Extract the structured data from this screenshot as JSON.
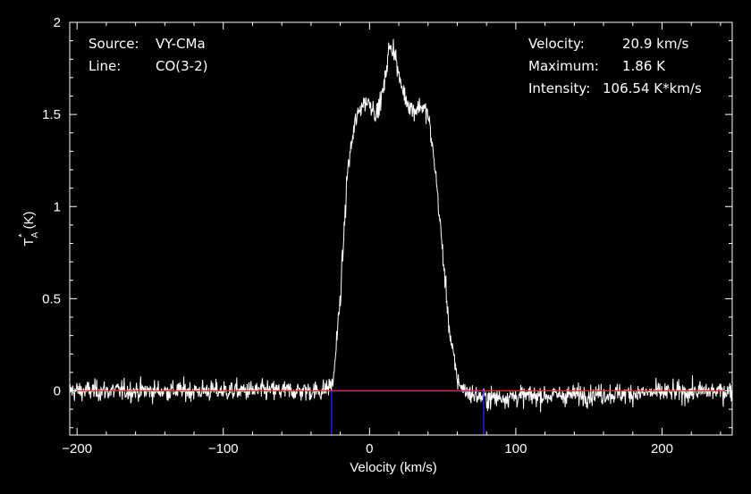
{
  "chart_data": {
    "type": "line",
    "xlabel": "Velocity (km/s)",
    "ylabel_main": "T",
    "ylabel_sub": "A",
    "ylabel_sup": "*",
    "ylabel_unit": "(K)",
    "xlim": [
      -205,
      248
    ],
    "ylim": [
      -0.24,
      2.0
    ],
    "x_ticks": [
      -200,
      -100,
      0,
      100,
      200
    ],
    "x_tick_labels": [
      "−200",
      "−100",
      "0",
      "100",
      "200"
    ],
    "y_ticks": [
      0,
      0.5,
      1,
      1.5,
      2
    ],
    "y_tick_labels": [
      "0",
      "0.5",
      "1",
      "1.5",
      "2"
    ],
    "series": [
      {
        "color": "#ffffff",
        "x": [
          -205,
          -100,
          -40,
          -32,
          -25,
          -20,
          -15,
          -10,
          -5,
          0,
          5,
          10,
          13,
          17,
          20,
          25,
          30,
          35,
          40,
          45,
          50,
          55,
          60,
          65,
          70,
          75,
          80,
          100,
          248
        ],
        "values": [
          0,
          0,
          0,
          0,
          0.04,
          0.5,
          1.2,
          1.45,
          1.56,
          1.57,
          1.5,
          1.65,
          1.85,
          1.86,
          1.7,
          1.58,
          1.52,
          1.55,
          1.5,
          1.2,
          0.75,
          0.3,
          0.06,
          0,
          -0.02,
          -0.03,
          -0.04,
          -0.03,
          0
        ],
        "noise_rms": 0.04
      }
    ],
    "baseline": {
      "value": 0,
      "color": "#ff2020"
    },
    "window": {
      "x_start": -26,
      "x_end": 78,
      "color": "#2020ff"
    }
  },
  "annotations": {
    "source_label": "Source:",
    "source_value": "VY-CMa",
    "line_label": "Line:",
    "line_value": "CO(3-2)",
    "velocity_label": "Velocity:",
    "velocity_value": "20.9 km/s",
    "maximum_label": "Maximum:",
    "maximum_value": "1.86 K",
    "intensity_label": "Intensity:",
    "intensity_value": "106.54 K*km/s"
  }
}
